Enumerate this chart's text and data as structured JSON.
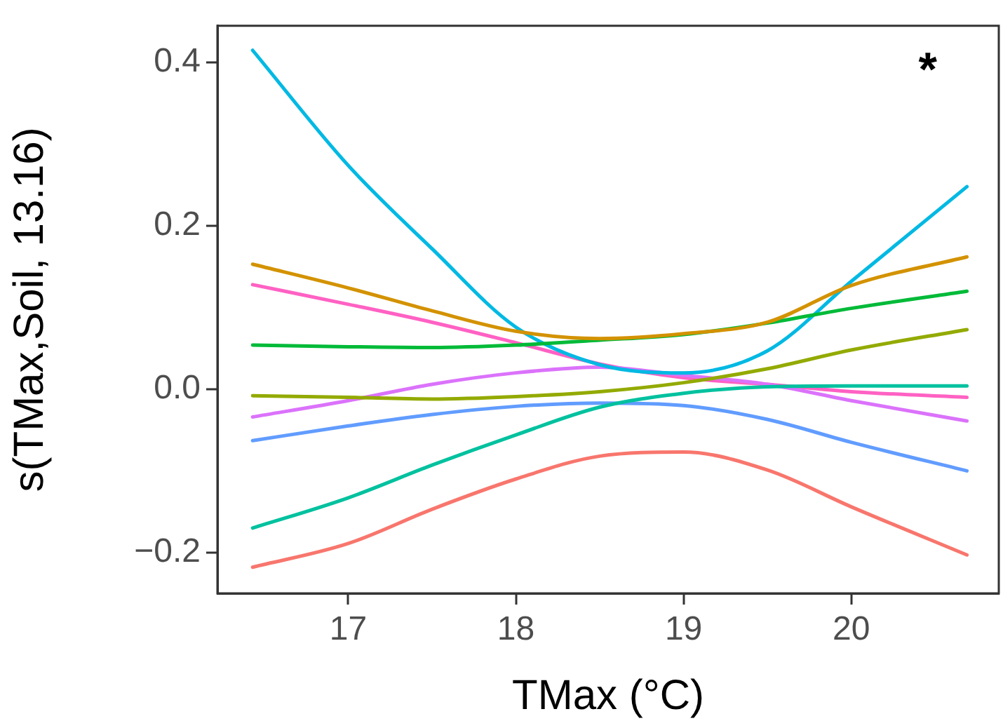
{
  "chart_data": {
    "type": "line",
    "xlabel": "TMax (°C)",
    "ylabel": "s(TMax,Soil, 13.16)",
    "annotations": [
      "*"
    ],
    "x": [
      16.43,
      17,
      17.5,
      18,
      18.5,
      19,
      19.5,
      20,
      20.69
    ],
    "xlim": [
      16.22,
      20.88
    ],
    "xticks": [
      17,
      18,
      19,
      20
    ],
    "ylim": [
      -0.25,
      0.445
    ],
    "yticks": [
      {
        "value": -0.2,
        "label": "−0.2"
      },
      {
        "value": 0,
        "label": "0.0"
      },
      {
        "value": 0.2,
        "label": "0.2"
      },
      {
        "value": 0.4,
        "label": "0.4"
      }
    ],
    "grid": false,
    "legend": false,
    "marker": "none",
    "line_style": "solid",
    "series": [
      {
        "color": "#f8766d",
        "values": [
          -0.218,
          -0.189,
          -0.147,
          -0.11,
          -0.082,
          -0.077,
          -0.099,
          -0.144,
          -0.203
        ]
      },
      {
        "color": "#d39200",
        "values": [
          0.153,
          0.124,
          0.096,
          0.071,
          0.062,
          0.068,
          0.082,
          0.127,
          0.162
        ]
      },
      {
        "color": "#93aa00",
        "values": [
          -0.008,
          -0.01,
          -0.012,
          -0.009,
          -0.003,
          0.008,
          0.025,
          0.048,
          0.073
        ]
      },
      {
        "color": "#00ba38",
        "values": [
          0.054,
          0.052,
          0.051,
          0.054,
          0.06,
          0.067,
          0.081,
          0.099,
          0.12
        ]
      },
      {
        "color": "#00c19f",
        "values": [
          -0.17,
          -0.133,
          -0.093,
          -0.056,
          -0.022,
          -0.005,
          0.003,
          0.004,
          0.004
        ]
      },
      {
        "color": "#00b9e3",
        "values": [
          0.415,
          0.274,
          0.172,
          0.076,
          0.03,
          0.02,
          0.047,
          0.132,
          0.248
        ]
      },
      {
        "color": "#619cff",
        "values": [
          -0.063,
          -0.045,
          -0.031,
          -0.021,
          -0.017,
          -0.02,
          -0.037,
          -0.065,
          -0.1
        ]
      },
      {
        "color": "#db72fb",
        "values": [
          -0.034,
          -0.014,
          0.006,
          0.02,
          0.027,
          0.017,
          0.006,
          -0.014,
          -0.039
        ]
      },
      {
        "color": "#ff61c3",
        "values": [
          0.128,
          0.104,
          0.082,
          0.057,
          0.031,
          0.014,
          0.006,
          -0.003,
          -0.01
        ]
      }
    ]
  }
}
